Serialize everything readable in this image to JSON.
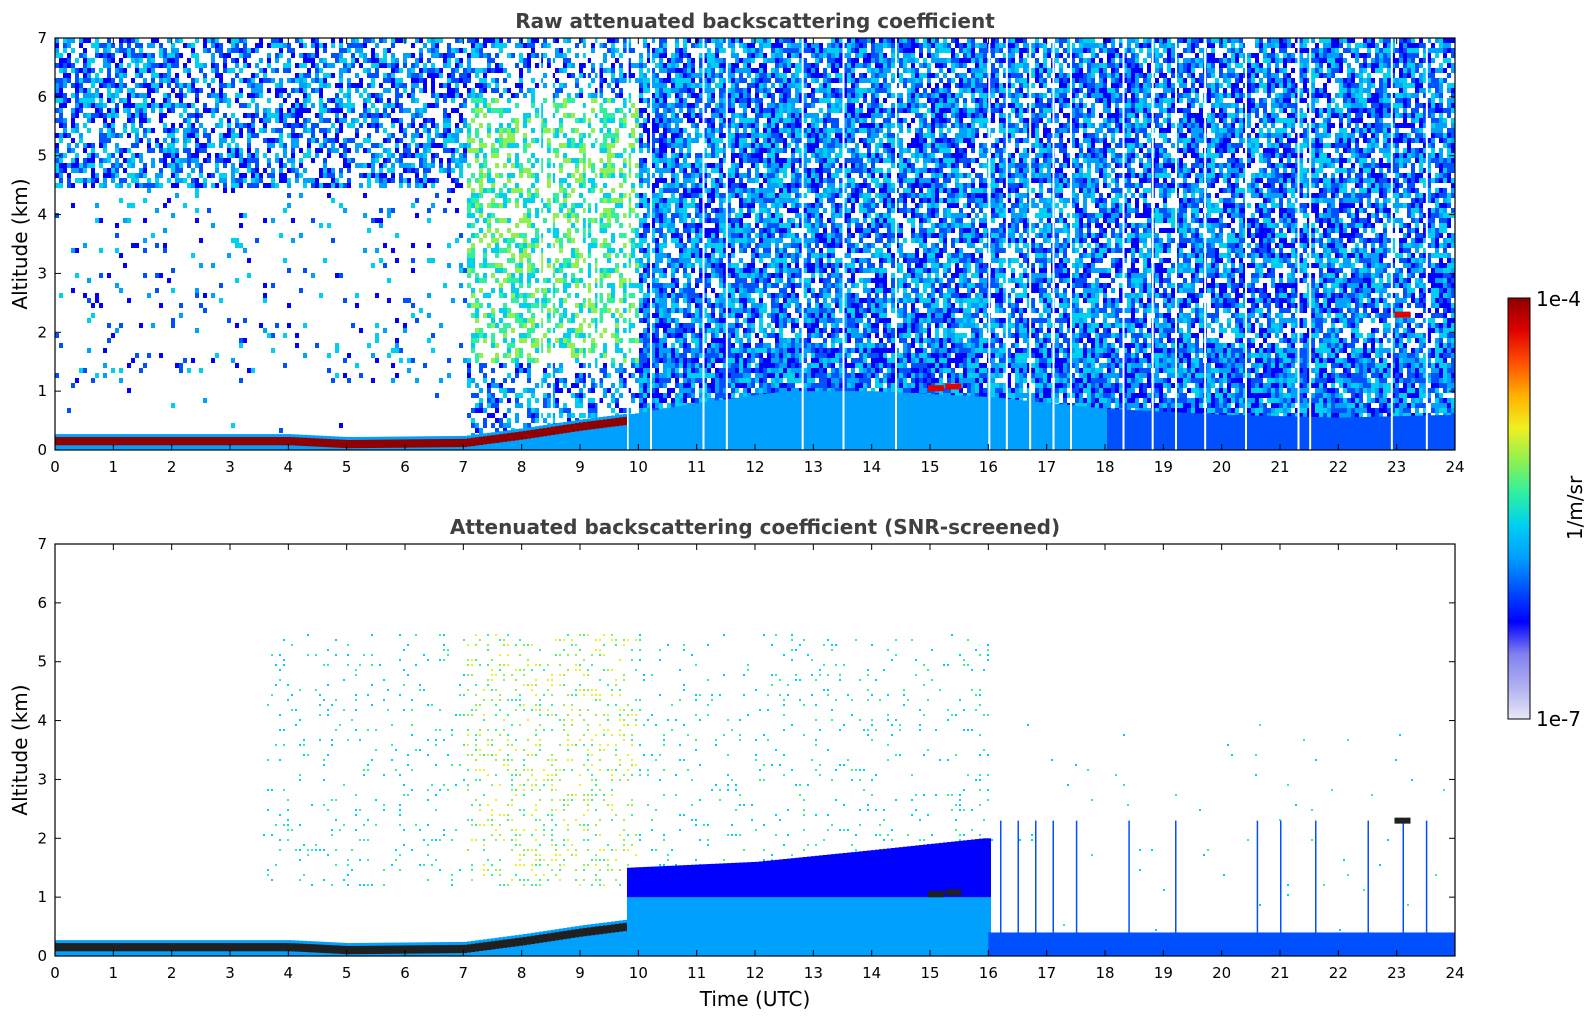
{
  "chart_data": [
    {
      "type": "heatmap",
      "title": "Raw attenuated backscattering coefficient",
      "xlabel": "",
      "ylabel": "Altitude (km)",
      "xlim": [
        0,
        24
      ],
      "ylim": [
        0,
        7
      ],
      "x_ticks": [
        "0",
        "1",
        "2",
        "3",
        "4",
        "5",
        "6",
        "7",
        "8",
        "9",
        "10",
        "11",
        "12",
        "13",
        "14",
        "15",
        "16",
        "17",
        "18",
        "19",
        "20",
        "21",
        "22",
        "23",
        "24"
      ],
      "y_ticks": [
        "0",
        "1",
        "2",
        "3",
        "4",
        "5",
        "6",
        "7"
      ],
      "features": {
        "surface_layer": [
          {
            "x": 0,
            "y": 0.15
          },
          {
            "x": 2,
            "y": 0.15
          },
          {
            "x": 4,
            "y": 0.15
          },
          {
            "x": 5,
            "y": 0.1
          },
          {
            "x": 7,
            "y": 0.12
          },
          {
            "x": 8,
            "y": 0.25
          },
          {
            "x": 9,
            "y": 0.4
          },
          {
            "x": 9.8,
            "y": 0.5
          }
        ],
        "boundary_layer_top": [
          {
            "x": 9.8,
            "y": 0.6
          },
          {
            "x": 11,
            "y": 0.8
          },
          {
            "x": 12.5,
            "y": 1.0
          },
          {
            "x": 14,
            "y": 1.0
          },
          {
            "x": 16,
            "y": 0.9
          },
          {
            "x": 18,
            "y": 0.7
          },
          {
            "x": 20,
            "y": 0.6
          },
          {
            "x": 22,
            "y": 0.55
          },
          {
            "x": 24,
            "y": 0.6
          }
        ],
        "cloud_patches": [
          {
            "x": 15.1,
            "y": 1.05
          },
          {
            "x": 15.4,
            "y": 1.08
          },
          {
            "x": 23.1,
            "y": 2.3
          }
        ],
        "gap_times": [
          8.3,
          8.5,
          9.1,
          9.3,
          9.8,
          10.2,
          11.1,
          11.5,
          12.8,
          13.5,
          14.4,
          16.0,
          16.3,
          16.7,
          17.1,
          17.4,
          18.3,
          18.8,
          19.2,
          19.7,
          20.4,
          21.3,
          21.5,
          22.9,
          23.5
        ]
      }
    },
    {
      "type": "heatmap",
      "title": "Attenuated backscattering coefficient (SNR-screened)",
      "xlabel": "Time (UTC)",
      "ylabel": "Altitude (km)",
      "xlim": [
        0,
        24
      ],
      "ylim": [
        0,
        7
      ],
      "x_ticks": [
        "0",
        "1",
        "2",
        "3",
        "4",
        "5",
        "6",
        "7",
        "8",
        "9",
        "10",
        "11",
        "12",
        "13",
        "14",
        "15",
        "16",
        "17",
        "18",
        "19",
        "20",
        "21",
        "22",
        "23",
        "24"
      ],
      "y_ticks": [
        "0",
        "1",
        "2",
        "3",
        "4",
        "5",
        "6",
        "7"
      ],
      "features": {
        "surface_layer": [
          {
            "x": 0,
            "y": 0.15
          },
          {
            "x": 2,
            "y": 0.15
          },
          {
            "x": 4,
            "y": 0.15
          },
          {
            "x": 5,
            "y": 0.1
          },
          {
            "x": 7,
            "y": 0.12
          },
          {
            "x": 8,
            "y": 0.25
          },
          {
            "x": 9,
            "y": 0.4
          },
          {
            "x": 9.8,
            "y": 0.5
          }
        ],
        "boundary_layer_top": [
          {
            "x": 9.8,
            "y": 1.5
          },
          {
            "x": 12,
            "y": 1.6
          },
          {
            "x": 14,
            "y": 1.8
          },
          {
            "x": 15.9,
            "y": 2.0
          }
        ],
        "night_layer_top": 0.4,
        "cloud_patches": [
          {
            "x": 15.1,
            "y": 1.05
          },
          {
            "x": 15.4,
            "y": 1.08
          },
          {
            "x": 23.1,
            "y": 2.3
          }
        ]
      }
    }
  ],
  "colorbar": {
    "max_label": "1e-4",
    "min_label": "1e-7",
    "units_label": "1/m/sr",
    "colormap": [
      "#e8e8f8",
      "#b0b0f0",
      "#8080f0",
      "#0000ff",
      "#0050ff",
      "#00a0ff",
      "#00d0f0",
      "#30f0a0",
      "#90f050",
      "#f0f020",
      "#ffb000",
      "#ff5000",
      "#e00000",
      "#900000"
    ]
  }
}
